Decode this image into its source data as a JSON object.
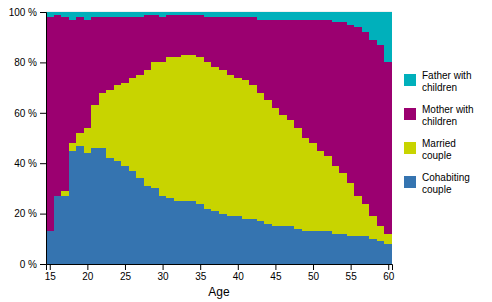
{
  "chart_data": {
    "type": "bar",
    "stacked": true,
    "xlabel": "Age",
    "x": [
      15,
      16,
      17,
      18,
      19,
      20,
      21,
      22,
      23,
      24,
      25,
      26,
      27,
      28,
      29,
      30,
      31,
      32,
      33,
      34,
      35,
      36,
      37,
      38,
      39,
      40,
      41,
      42,
      43,
      44,
      45,
      46,
      47,
      48,
      49,
      50,
      51,
      52,
      53,
      54,
      55,
      56,
      57,
      58,
      59,
      60
    ],
    "series": [
      {
        "name": "Cohabiting\ncouple",
        "color": "#3574b0",
        "values": [
          13,
          27,
          27,
          45,
          47,
          44,
          46,
          46,
          42,
          41,
          39,
          37,
          34,
          31,
          30,
          27,
          26,
          25,
          25,
          25,
          24,
          22,
          21,
          20,
          19,
          19,
          18,
          18,
          17,
          16,
          15,
          15,
          15,
          14,
          13,
          13,
          13,
          13,
          12,
          12,
          11,
          11,
          11,
          10,
          9,
          8
        ]
      },
      {
        "name": "Married\ncouple",
        "color": "#c8d400",
        "values": [
          0,
          0,
          2,
          3,
          5,
          10,
          17,
          22,
          27,
          30,
          33,
          37,
          41,
          46,
          50,
          53,
          56,
          57,
          58,
          58,
          58,
          58,
          57,
          57,
          56,
          55,
          55,
          53,
          51,
          49,
          47,
          44,
          42,
          40,
          37,
          35,
          32,
          30,
          27,
          24,
          21,
          16,
          13,
          9,
          6,
          4
        ]
      },
      {
        "name": "Mother with\nchildren",
        "color": "#9b0070",
        "values": [
          85,
          72,
          69,
          49,
          46,
          43,
          35,
          30,
          29,
          27,
          26,
          24,
          23,
          22,
          19,
          18,
          17,
          17,
          16,
          16,
          17,
          18,
          20,
          21,
          23,
          24,
          25,
          27,
          29,
          32,
          35,
          38,
          40,
          43,
          47,
          49,
          52,
          54,
          57,
          60,
          63,
          67,
          68,
          70,
          72,
          68
        ]
      },
      {
        "name": "Father with\nchildren",
        "color": "#00b0bb",
        "values": [
          2,
          1,
          2,
          3,
          2,
          3,
          2,
          2,
          2,
          2,
          2,
          2,
          2,
          1,
          1,
          2,
          1,
          1,
          1,
          1,
          1,
          2,
          2,
          2,
          2,
          2,
          2,
          2,
          3,
          3,
          3,
          3,
          3,
          3,
          3,
          3,
          3,
          3,
          4,
          4,
          5,
          6,
          8,
          11,
          13,
          20
        ]
      }
    ],
    "xlim": [
      14.5,
      60.5
    ],
    "xticks": [
      15,
      20,
      25,
      30,
      35,
      40,
      45,
      50,
      55,
      60
    ],
    "ylim": [
      0,
      100
    ],
    "yticks": [
      {
        "value": 0,
        "label": "0 %"
      },
      {
        "value": 20,
        "label": "20 %"
      },
      {
        "value": 40,
        "label": "40 %"
      },
      {
        "value": 60,
        "label": "60 %"
      },
      {
        "value": 80,
        "label": "80 %"
      },
      {
        "value": 100,
        "label": "100 %"
      }
    ],
    "grid": true,
    "legend": "right"
  }
}
